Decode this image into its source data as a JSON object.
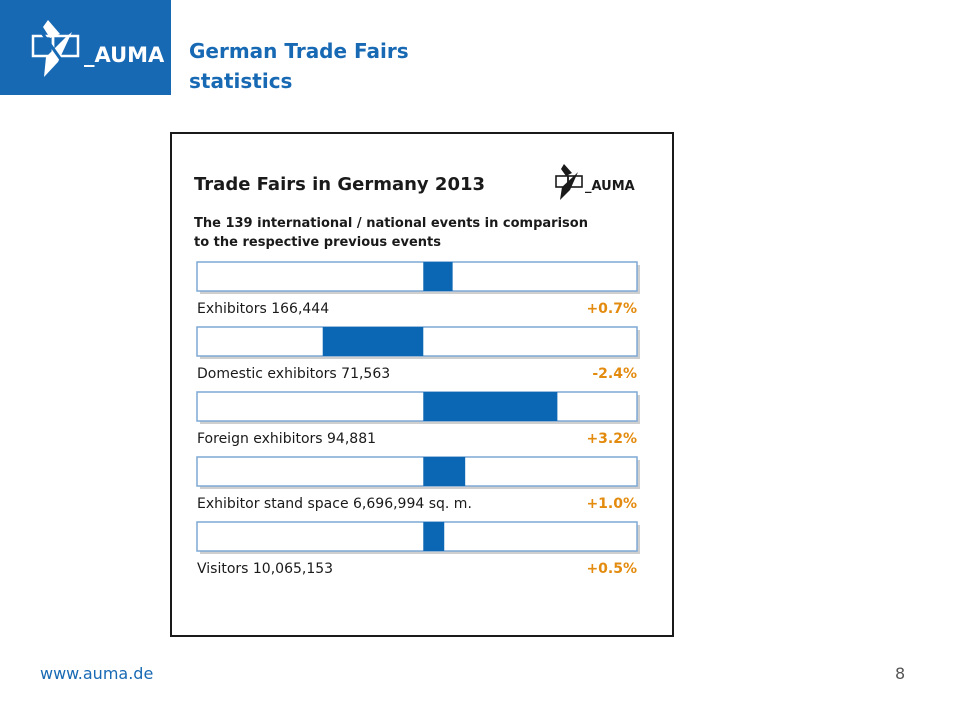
{
  "logo": {
    "text": "_AUMA"
  },
  "header": {
    "title_line1": "German Trade Fairs",
    "title_line2": "statistics"
  },
  "colors": {
    "brand_blue": "#1769b4",
    "bar_blue": "#0b67b3",
    "bar_border": "#7fa9d6",
    "track_shadow": "#cfcfcf",
    "change_orange": "#e38b0f",
    "text_dark": "#1a1a1a"
  },
  "footer": {
    "url": "www.auma.de",
    "page_number": "8"
  },
  "chart_data": {
    "type": "bar",
    "orientation": "horizontal-diverging",
    "title": "Trade Fairs in Germany 2013",
    "logo_text": "_AUMA",
    "subtitle_line1": "The 139 international / national events in comparison",
    "subtitle_line2": "to the respective previous events",
    "categories": [
      "Exhibitors 166,444",
      "Domestic exhibitors 71,563",
      "Foreign exhibitors 94,881",
      "Exhibitor stand space 6,696,994 sq. m.",
      "Visitors 10,065,153"
    ],
    "values": [
      0.7,
      -2.4,
      3.2,
      1.0,
      0.5
    ],
    "value_labels": [
      "+0.7%",
      "-2.4%",
      "+3.2%",
      "+1.0%",
      "+0.5%"
    ],
    "unit": "%",
    "xlim": [
      -5.4,
      5.1
    ],
    "baseline": 0,
    "grid": false
  }
}
